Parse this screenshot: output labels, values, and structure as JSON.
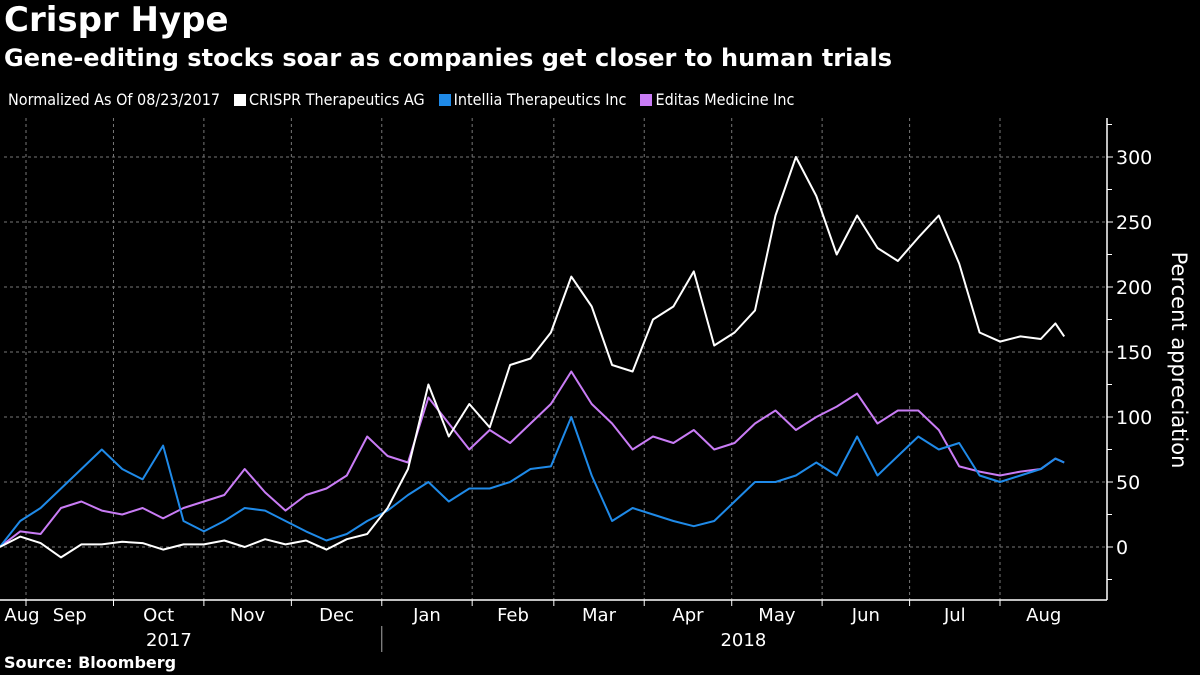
{
  "title": "Crispr Hype",
  "subtitle": "Gene-editing stocks soar as companies get closer to human trials",
  "legend_note": "Normalized As Of 08/23/2017",
  "source": "Source: Bloomberg",
  "chart_data": {
    "type": "line",
    "title": "Crispr Hype",
    "subtitle": "Gene-editing stocks soar as companies get closer to human trials",
    "xlabel": "",
    "ylabel": "Percent appreciation",
    "ylim": [
      -35,
      325
    ],
    "yticks": [
      0,
      50,
      100,
      150,
      200,
      250,
      300
    ],
    "grid": true,
    "legend_position": "top-left",
    "x_month_labels": [
      "Aug",
      "Sep",
      "Oct",
      "Nov",
      "Dec",
      "Jan",
      "Feb",
      "Mar",
      "Apr",
      "May",
      "Jun",
      "Jul",
      "Aug"
    ],
    "x_month_starts": [
      "2017-08-23",
      "2017-09-01",
      "2017-10-01",
      "2017-11-01",
      "2017-12-01",
      "2018-01-01",
      "2018-02-01",
      "2018-03-01",
      "2018-04-01",
      "2018-05-01",
      "2018-06-01",
      "2018-07-01",
      "2018-08-01"
    ],
    "x_year_labels": [
      {
        "label": "2017",
        "center": "2017-10-20"
      },
      {
        "label": "2018",
        "center": "2018-05-05"
      }
    ],
    "x_year_divider": "2018-01-01",
    "xlim": [
      "2017-08-23",
      "2018-08-31"
    ],
    "dates": [
      "2017-08-23",
      "2017-08-30",
      "2017-09-06",
      "2017-09-13",
      "2017-09-20",
      "2017-09-27",
      "2017-10-04",
      "2017-10-11",
      "2017-10-18",
      "2017-10-25",
      "2017-11-01",
      "2017-11-08",
      "2017-11-15",
      "2017-11-22",
      "2017-11-29",
      "2017-12-06",
      "2017-12-13",
      "2017-12-20",
      "2017-12-27",
      "2018-01-03",
      "2018-01-10",
      "2018-01-17",
      "2018-01-24",
      "2018-01-31",
      "2018-02-07",
      "2018-02-14",
      "2018-02-21",
      "2018-02-28",
      "2018-03-07",
      "2018-03-14",
      "2018-03-21",
      "2018-03-28",
      "2018-04-04",
      "2018-04-11",
      "2018-04-18",
      "2018-04-25",
      "2018-05-02",
      "2018-05-09",
      "2018-05-16",
      "2018-05-23",
      "2018-05-30",
      "2018-06-06",
      "2018-06-13",
      "2018-06-20",
      "2018-06-27",
      "2018-07-04",
      "2018-07-11",
      "2018-07-18",
      "2018-07-25",
      "2018-08-01",
      "2018-08-08",
      "2018-08-15",
      "2018-08-20",
      "2018-08-23"
    ],
    "series": [
      {
        "name": "CRISPR Therapeutics AG",
        "color": "#ffffff",
        "values": [
          0,
          8,
          3,
          -8,
          2,
          2,
          4,
          3,
          -2,
          2,
          2,
          5,
          0,
          6,
          2,
          5,
          -2,
          6,
          10,
          30,
          60,
          125,
          85,
          110,
          92,
          140,
          145,
          165,
          208,
          185,
          140,
          135,
          175,
          185,
          212,
          155,
          165,
          182,
          255,
          300,
          270,
          225,
          255,
          230,
          220,
          238,
          255,
          218,
          165,
          158,
          162,
          160,
          172,
          162
        ]
      },
      {
        "name": "Intellia Therapeutics Inc",
        "color": "#1f8ae8",
        "values": [
          0,
          20,
          30,
          45,
          60,
          75,
          60,
          52,
          78,
          20,
          12,
          20,
          30,
          28,
          20,
          12,
          5,
          10,
          20,
          28,
          40,
          50,
          35,
          45,
          45,
          50,
          60,
          62,
          100,
          55,
          20,
          30,
          25,
          20,
          16,
          20,
          35,
          50,
          50,
          55,
          65,
          55,
          85,
          55,
          70,
          85,
          75,
          80,
          55,
          50,
          55,
          60,
          68,
          65
        ]
      },
      {
        "name": "Editas Medicine Inc",
        "color": "#c97cf5",
        "values": [
          0,
          12,
          10,
          30,
          35,
          28,
          25,
          30,
          22,
          30,
          35,
          40,
          60,
          42,
          28,
          40,
          45,
          55,
          85,
          70,
          65,
          115,
          95,
          75,
          90,
          80,
          95,
          110,
          135,
          110,
          95,
          75,
          85,
          80,
          90,
          75,
          80,
          95,
          105,
          90,
          100,
          108,
          118,
          95,
          105,
          105,
          90,
          62,
          58,
          55,
          58,
          60,
          68,
          65
        ]
      }
    ]
  }
}
